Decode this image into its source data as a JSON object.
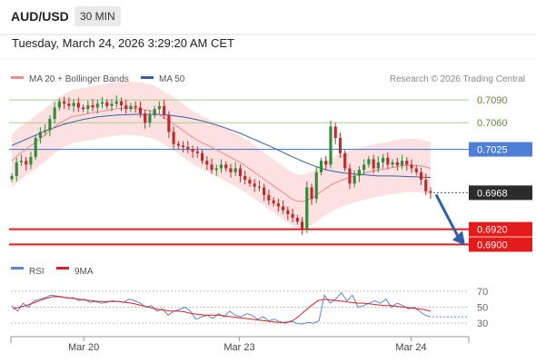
{
  "header": {
    "symbol": "AUD/USD",
    "timeframe": "30 MIN",
    "datetime": "Tuesday, March 24, 2026 3:29:20 AM CET"
  },
  "legend": {
    "ma20": "MA 20 + Bollinger Bands",
    "ma50": "MA 50",
    "credit": "Research © 2026 Trading Central"
  },
  "colors": {
    "ma20": "#f08a8a",
    "ma50": "#3a5fa8",
    "bands": "#fde0e0",
    "up": "#2e8b3a",
    "down": "#c0282a",
    "resistance_lines": "#a8d08d",
    "pivot_line": "#4d7fd6",
    "support_lines": "#e31b1b",
    "rsi": "#5a86d6",
    "rsi_ma": "#d92020"
  },
  "chart_data": [
    {
      "type": "candlestick",
      "x_labels": [
        "Mar 20",
        "Mar 23",
        "Mar 24"
      ],
      "ylim": [
        0.6885,
        0.7102
      ],
      "levels": [
        {
          "value": 0.709,
          "label": "0.7090",
          "kind": "resistance"
        },
        {
          "value": 0.706,
          "label": "0.7060",
          "kind": "resistance"
        },
        {
          "value": 0.7025,
          "label": "0.7025",
          "kind": "pivot"
        },
        {
          "value": 0.692,
          "label": "0.6920",
          "kind": "support"
        },
        {
          "value": 0.69,
          "label": "0.6900",
          "kind": "support"
        }
      ],
      "last_price": {
        "value": 0.6968,
        "label": "0.6968"
      },
      "close": [
        0.699,
        0.7008,
        0.701,
        0.7005,
        0.7015,
        0.704,
        0.7048,
        0.705,
        0.7065,
        0.708,
        0.7088,
        0.7085,
        0.7082,
        0.7086,
        0.708,
        0.7078,
        0.7083,
        0.708,
        0.7085,
        0.7087,
        0.7082,
        0.7085,
        0.7088,
        0.7083,
        0.7078,
        0.7082,
        0.708,
        0.7072,
        0.706,
        0.707,
        0.7078,
        0.7082,
        0.707,
        0.7048,
        0.7032,
        0.703,
        0.7028,
        0.7025,
        0.7022,
        0.702,
        0.701,
        0.7005,
        0.6998,
        0.7,
        0.7005,
        0.7,
        0.6995,
        0.7,
        0.699,
        0.6985,
        0.698,
        0.6976,
        0.6975,
        0.6965,
        0.6958,
        0.6954,
        0.695,
        0.6945,
        0.694,
        0.6935,
        0.693,
        0.692,
        0.6975,
        0.696,
        0.6995,
        0.701,
        0.7005,
        0.7055,
        0.704,
        0.702,
        0.7,
        0.698,
        0.699,
        0.6998,
        0.7005,
        0.7012,
        0.7,
        0.7008,
        0.7014,
        0.7005,
        0.7008,
        0.7004,
        0.701,
        0.7005,
        0.7,
        0.6995,
        0.6985,
        0.697,
        0.6968
      ],
      "ma20": [
        0.701,
        0.702,
        0.7028,
        0.7036,
        0.7045,
        0.7055,
        0.7062,
        0.7068,
        0.707,
        0.7072,
        0.7074,
        0.7076,
        0.7078,
        0.7079,
        0.7079,
        0.7078,
        0.7076,
        0.7072,
        0.7065,
        0.7058,
        0.705,
        0.7042,
        0.7035,
        0.703,
        0.7024,
        0.7018,
        0.7012,
        0.7006,
        0.6998,
        0.699,
        0.6982,
        0.6974,
        0.6966,
        0.6958,
        0.6956,
        0.696,
        0.6968,
        0.6976,
        0.6982,
        0.6986,
        0.699,
        0.6993,
        0.6996,
        0.6998,
        0.7,
        0.7002,
        0.7004,
        0.7004,
        0.7003,
        0.7
      ],
      "ma50": [
        0.703,
        0.704,
        0.705,
        0.7058,
        0.7064,
        0.7068,
        0.707,
        0.7071,
        0.7071,
        0.707,
        0.7067,
        0.7062,
        0.7055,
        0.7047,
        0.7037,
        0.7027,
        0.7016,
        0.7006,
        0.6998,
        0.6994,
        0.6992,
        0.699,
        0.699,
        0.6989,
        0.6988
      ],
      "band_width": 0.0035
    },
    {
      "type": "line",
      "title": "RSI",
      "series": [
        {
          "name": "RSI"
        },
        {
          "name": "9MA"
        }
      ],
      "ticks": [
        70,
        50,
        30
      ],
      "ylim": [
        20,
        80
      ],
      "rsi": [
        52,
        45,
        55,
        50,
        58,
        60,
        62,
        65,
        64,
        63,
        61,
        62,
        58,
        60,
        56,
        57,
        55,
        56,
        58,
        57,
        56,
        60,
        58,
        55,
        50,
        52,
        45,
        48,
        40,
        45,
        47,
        50,
        45,
        35,
        38,
        40,
        36,
        42,
        38,
        45,
        40,
        38,
        42,
        40,
        35,
        38,
        33,
        35,
        32,
        30,
        33,
        30,
        29,
        31,
        30,
        33,
        65,
        55,
        60,
        68,
        58,
        65,
        50,
        52,
        55,
        58,
        55,
        60,
        50,
        55,
        52,
        48,
        50,
        45,
        40,
        38
      ],
      "rsi_ma": [
        48,
        50,
        52,
        55,
        58,
        61,
        63,
        63,
        62,
        61,
        60,
        59,
        58,
        57,
        57,
        57,
        57,
        56,
        55,
        53,
        51,
        49,
        47,
        46,
        45,
        45,
        44,
        42,
        41,
        40,
        40,
        40,
        39,
        38,
        37,
        36,
        35,
        34,
        33,
        32,
        31,
        31,
        32,
        38,
        45,
        52,
        58,
        60,
        59,
        58,
        57,
        56,
        55,
        55,
        54,
        53,
        52,
        52,
        51,
        50,
        49,
        48,
        47,
        45
      ]
    }
  ]
}
